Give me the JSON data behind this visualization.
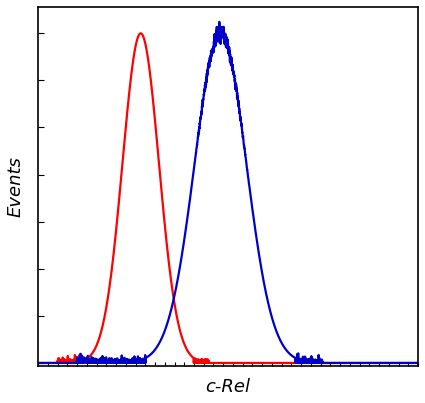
{
  "title": "",
  "xlabel": "c-Rel",
  "ylabel": "Events",
  "xlabel_style": "italic",
  "ylabel_style": "italic",
  "xlabel_fontsize": 13,
  "ylabel_fontsize": 13,
  "background_color": "#ffffff",
  "spine_color": "#000000",
  "red_curve": {
    "mean": 0.27,
    "std": 0.048,
    "peak": 1.0,
    "color": "#ff0000",
    "linewidth": 1.6
  },
  "blue_curve": {
    "mean": 0.48,
    "std": 0.068,
    "peak": 1.0,
    "color": "#0000cc",
    "linewidth": 1.6
  },
  "xlim": [
    0,
    1
  ],
  "ylim": [
    -0.01,
    1.08
  ],
  "x_nticks": 40,
  "y_nticks": 8,
  "figsize": [
    4.25,
    4.03
  ],
  "dpi": 100
}
